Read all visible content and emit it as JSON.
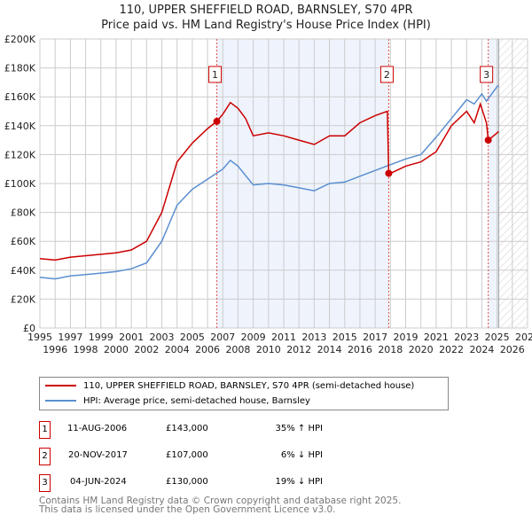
{
  "title": "110, UPPER SHEFFIELD ROAD, BARNSLEY, S70 4PR",
  "subtitle": "Price paid vs. HM Land Registry's House Price Index (HPI)",
  "chart_data": {
    "type": "line",
    "title": "110, UPPER SHEFFIELD ROAD, BARNSLEY, S70 4PR",
    "subtitle": "Price paid vs. HM Land Registry's House Price Index (HPI)",
    "xlim": [
      1995,
      2027
    ],
    "ylim": [
      0,
      200000
    ],
    "x_ticks": [
      "1995",
      "1996",
      "1997",
      "1998",
      "1999",
      "2000",
      "2001",
      "2002",
      "2003",
      "2004",
      "2005",
      "2006",
      "2007",
      "2008",
      "2009",
      "2010",
      "2011",
      "2012",
      "2013",
      "2014",
      "2015",
      "2016",
      "2017",
      "2018",
      "2019",
      "2020",
      "2021",
      "2022",
      "2023",
      "2024",
      "2025",
      "2026",
      "2027"
    ],
    "y_ticks": [
      {
        "v": 0,
        "label": "£0"
      },
      {
        "v": 20000,
        "label": "£20K"
      },
      {
        "v": 40000,
        "label": "£40K"
      },
      {
        "v": 60000,
        "label": "£60K"
      },
      {
        "v": 80000,
        "label": "£80K"
      },
      {
        "v": 100000,
        "label": "£100K"
      },
      {
        "v": 120000,
        "label": "£120K"
      },
      {
        "v": 140000,
        "label": "£140K"
      },
      {
        "v": 160000,
        "label": "£160K"
      },
      {
        "v": 180000,
        "label": "£180K"
      },
      {
        "v": 200000,
        "label": "£200K"
      }
    ],
    "grid": true,
    "shaded_ranges": [
      [
        2006.61,
        2017.89
      ],
      [
        2024.42,
        2025.1
      ]
    ],
    "forecast_hatch_from": 2025.1,
    "series": [
      {
        "name": "110, UPPER SHEFFIELD ROAD, BARNSLEY, S70 4PR (semi-detached house)",
        "color": "#cc0000",
        "x": [
          1995,
          1996,
          1997,
          1998,
          1999,
          2000,
          2001,
          2002,
          2003,
          2004,
          2005,
          2006,
          2006.61,
          2007,
          2007.5,
          2008,
          2008.5,
          2009,
          2010,
          2011,
          2012,
          2013,
          2014,
          2015,
          2016,
          2017,
          2017.8,
          2017.89,
          2018,
          2019,
          2020,
          2021,
          2022,
          2023,
          2023.5,
          2023.9,
          2024.3,
          2024.42,
          2025,
          2025.1
        ],
        "y": [
          48000,
          47000,
          49000,
          50000,
          51000,
          52000,
          54000,
          60000,
          80000,
          115000,
          128000,
          138000,
          143000,
          148000,
          156000,
          152000,
          145000,
          133000,
          135000,
          133000,
          130000,
          127000,
          133000,
          133000,
          142000,
          147000,
          150000,
          107000,
          107000,
          112000,
          115000,
          122000,
          140000,
          150000,
          142000,
          155000,
          142000,
          130000,
          135000,
          136000
        ]
      },
      {
        "name": "HPI: Average price, semi-detached house, Barnsley",
        "color": "#5b8fd0",
        "x": [
          1995,
          1996,
          1997,
          1998,
          1999,
          2000,
          2001,
          2002,
          2003,
          2004,
          2005,
          2006,
          2007,
          2007.5,
          2008,
          2009,
          2010,
          2011,
          2012,
          2013,
          2014,
          2015,
          2016,
          2017,
          2018,
          2019,
          2020,
          2021,
          2022,
          2023,
          2023.5,
          2024,
          2024.3,
          2025,
          2025.1
        ],
        "y": [
          35000,
          34000,
          36000,
          37000,
          38000,
          39000,
          41000,
          45000,
          60000,
          85000,
          96000,
          103000,
          110000,
          116000,
          112000,
          99000,
          100000,
          99000,
          97000,
          95000,
          100000,
          101000,
          105000,
          109000,
          113000,
          117000,
          120000,
          132000,
          145000,
          158000,
          155000,
          162000,
          157000,
          167000,
          168000
        ]
      }
    ],
    "annotations": [
      {
        "label": "1",
        "x": 2006.61,
        "y": 143000
      },
      {
        "label": "2",
        "x": 2017.89,
        "y": 107000
      },
      {
        "label": "3",
        "x": 2024.42,
        "y": 130000
      }
    ],
    "legend_position": "below"
  },
  "legend": [
    {
      "label": "110, UPPER SHEFFIELD ROAD, BARNSLEY, S70 4PR (semi-detached house)",
      "color": "#cc0000"
    },
    {
      "label": "HPI: Average price, semi-detached house, Barnsley",
      "color": "#5b8fd0"
    }
  ],
  "transactions": [
    {
      "num": "1",
      "date": "11-AUG-2006",
      "price": "£143,000",
      "hpi": "35% ↑ HPI"
    },
    {
      "num": "2",
      "date": "20-NOV-2017",
      "price": "£107,000",
      "hpi": "6% ↓ HPI"
    },
    {
      "num": "3",
      "date": "04-JUN-2024",
      "price": "£130,000",
      "hpi": "19% ↓ HPI"
    }
  ],
  "footer": [
    "Contains HM Land Registry data © Crown copyright and database right 2025.",
    "This data is licensed under the Open Government Licence v3.0."
  ]
}
